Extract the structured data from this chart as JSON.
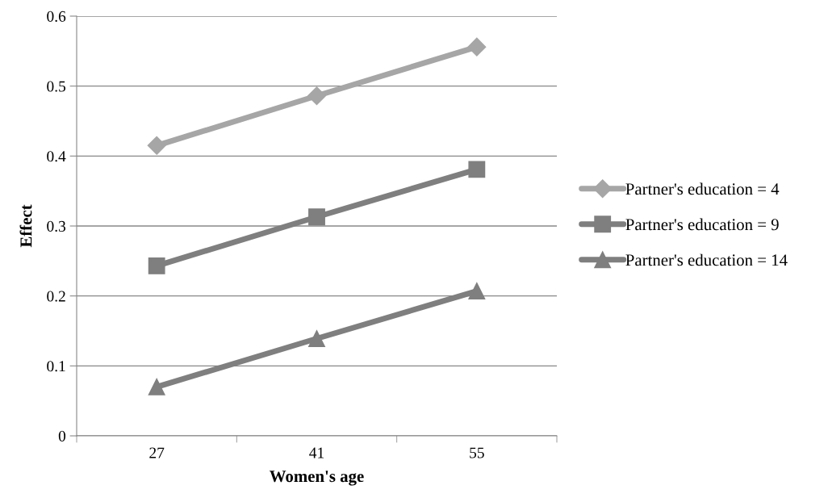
{
  "chart_data": {
    "type": "line",
    "xlabel": "Women's age",
    "ylabel": "Effect",
    "categories": [
      "27",
      "41",
      "55"
    ],
    "series": [
      {
        "name": "Partner's education = 4",
        "color": "#a6a6a6",
        "marker": "diamond",
        "values": [
          0.415,
          0.486,
          0.556
        ]
      },
      {
        "name": "Partner's education = 9",
        "color": "#7f7f7f",
        "marker": "square",
        "values": [
          0.243,
          0.313,
          0.381
        ]
      },
      {
        "name": "Partner's education = 14",
        "color": "#7f7f7f",
        "marker": "triangle",
        "values": [
          0.07,
          0.139,
          0.207
        ]
      }
    ],
    "ylim": [
      0,
      0.6
    ],
    "yticks": [
      0,
      0.1,
      0.2,
      0.3,
      0.4,
      0.5,
      0.6
    ],
    "grid": "y",
    "legend": "right",
    "line_style": "solid"
  }
}
